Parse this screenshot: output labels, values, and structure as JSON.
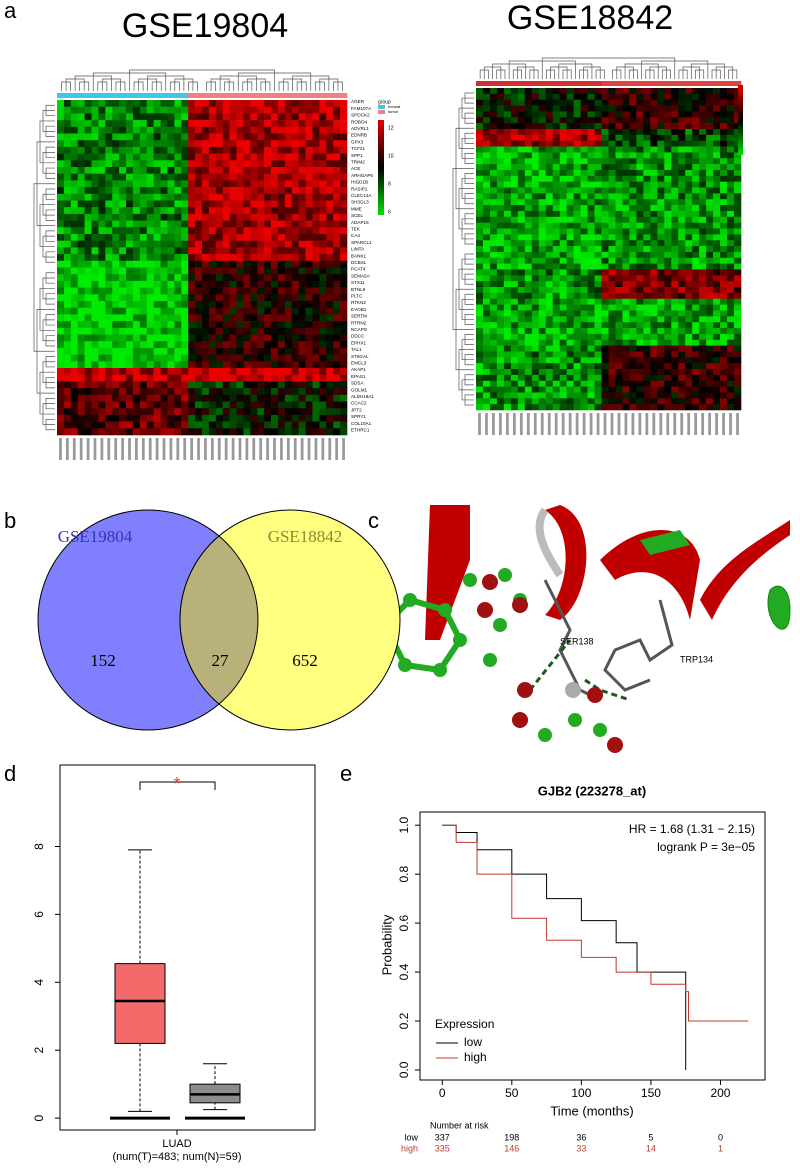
{
  "panels": {
    "a": "a",
    "b": "b",
    "c": "c",
    "d": "d",
    "e": "e"
  },
  "heatmaps": [
    {
      "title": "GSE19804",
      "legend_title": "group",
      "legend_groups": [
        "normal",
        "tumor"
      ],
      "scale_labels": [
        "12",
        "10",
        "8",
        "6"
      ],
      "genes": [
        "AGER",
        "FAM107A",
        "SPOCK2",
        "ROBO4",
        "ADVRL1",
        "EDNRB",
        "GPX3",
        "TCF21",
        "SPP1",
        "TRIM2",
        "ACE",
        "ARHGAP6",
        "HIGD1B",
        "RASIP1",
        "CLEC14A",
        "SH3GL3",
        "MME",
        "SCEL",
        "ADAP16",
        "TEK",
        "CA4",
        "SPARCL1",
        "LIMTA",
        "BANK1",
        "DCBSL",
        "PCAT4",
        "SEMA5A",
        "STX11",
        "BTNL9",
        "PLTC",
        "RTKN2",
        "EVOB1",
        "SERTM",
        "RTRN2",
        "NCAPG",
        "DDCC",
        "EPHX1",
        "TAL1",
        "ST6GAL",
        "EMCL3",
        "AKAP1",
        "EPAS1",
        "SDSA",
        "GOLM1",
        "ALDH18A1",
        "CCAC2",
        "JPT2",
        "SPRY1",
        "COL10A1",
        "ETHRC1"
      ]
    },
    {
      "title": "GSE18842"
    }
  ],
  "venn": {
    "type": "venn",
    "sets": [
      {
        "name": "GSE19804",
        "color": "#8080ff"
      },
      {
        "name": "GSE18842",
        "color": "#ffff80"
      }
    ],
    "only_first": 152,
    "overlap": 27,
    "only_second": 652,
    "overlap_color": "#b8b27a"
  },
  "docking": {
    "residues": [
      "SER138",
      "TRP134"
    ]
  },
  "boxplot": {
    "type": "box",
    "category": "LUAD",
    "caption": "(num(T)=483; num(N)=59)",
    "significance": "*",
    "ylim": [
      -0.35,
      10.4
    ],
    "yticks": [
      0,
      2,
      4,
      6,
      8
    ],
    "boxes": [
      {
        "color": "#f26a6a",
        "min": 0.2,
        "q1": 2.2,
        "median": 3.45,
        "q3": 4.55,
        "max": 7.9
      },
      {
        "color": "#8c8c8c",
        "min": 0.25,
        "q1": 0.45,
        "median": 0.7,
        "q3": 1.0,
        "max": 1.6
      }
    ]
  },
  "km": {
    "type": "line",
    "title": "GJB2 (223278_at)",
    "hr": "HR = 1.68 (1.31 − 2.15)",
    "logrank": "logrank P = 3e−05",
    "xlabel": "Time (months)",
    "ylabel": "Probability",
    "legend_title": "Expression",
    "xlim": [
      -16,
      232
    ],
    "ylim": [
      -0.041,
      1.054
    ],
    "xticks": [
      0,
      50,
      100,
      150,
      200
    ],
    "yticks": [
      {
        "value": 0,
        "label": "0.0"
      },
      {
        "value": 0.2,
        "label": "0.2"
      },
      {
        "value": 0.4,
        "label": "0.4"
      },
      {
        "value": 0.6,
        "label": "0.6"
      },
      {
        "value": 0.8,
        "label": "0.8"
      },
      {
        "value": 1,
        "label": "1.0"
      }
    ],
    "series": [
      {
        "name": "low",
        "color": "#000000",
        "x": [
          0,
          10,
          25,
          50,
          75,
          100,
          125,
          140,
          175,
          175
        ],
        "values": [
          1,
          0.97,
          0.9,
          0.8,
          0.7,
          0.61,
          0.52,
          0.4,
          0.4,
          0
        ]
      },
      {
        "name": "high",
        "color": "#c0392b",
        "x": [
          0,
          10,
          25,
          50,
          75,
          100,
          125,
          150,
          175,
          177,
          220
        ],
        "values": [
          1,
          0.93,
          0.8,
          0.62,
          0.53,
          0.46,
          0.4,
          0.35,
          0.32,
          0.2,
          0.2
        ]
      }
    ],
    "risk_title": "Number at risk",
    "risk": [
      {
        "name": "low",
        "values": [
          337,
          198,
          36,
          5,
          0
        ]
      },
      {
        "name": "high",
        "values": [
          335,
          146,
          33,
          14,
          1
        ]
      }
    ]
  }
}
